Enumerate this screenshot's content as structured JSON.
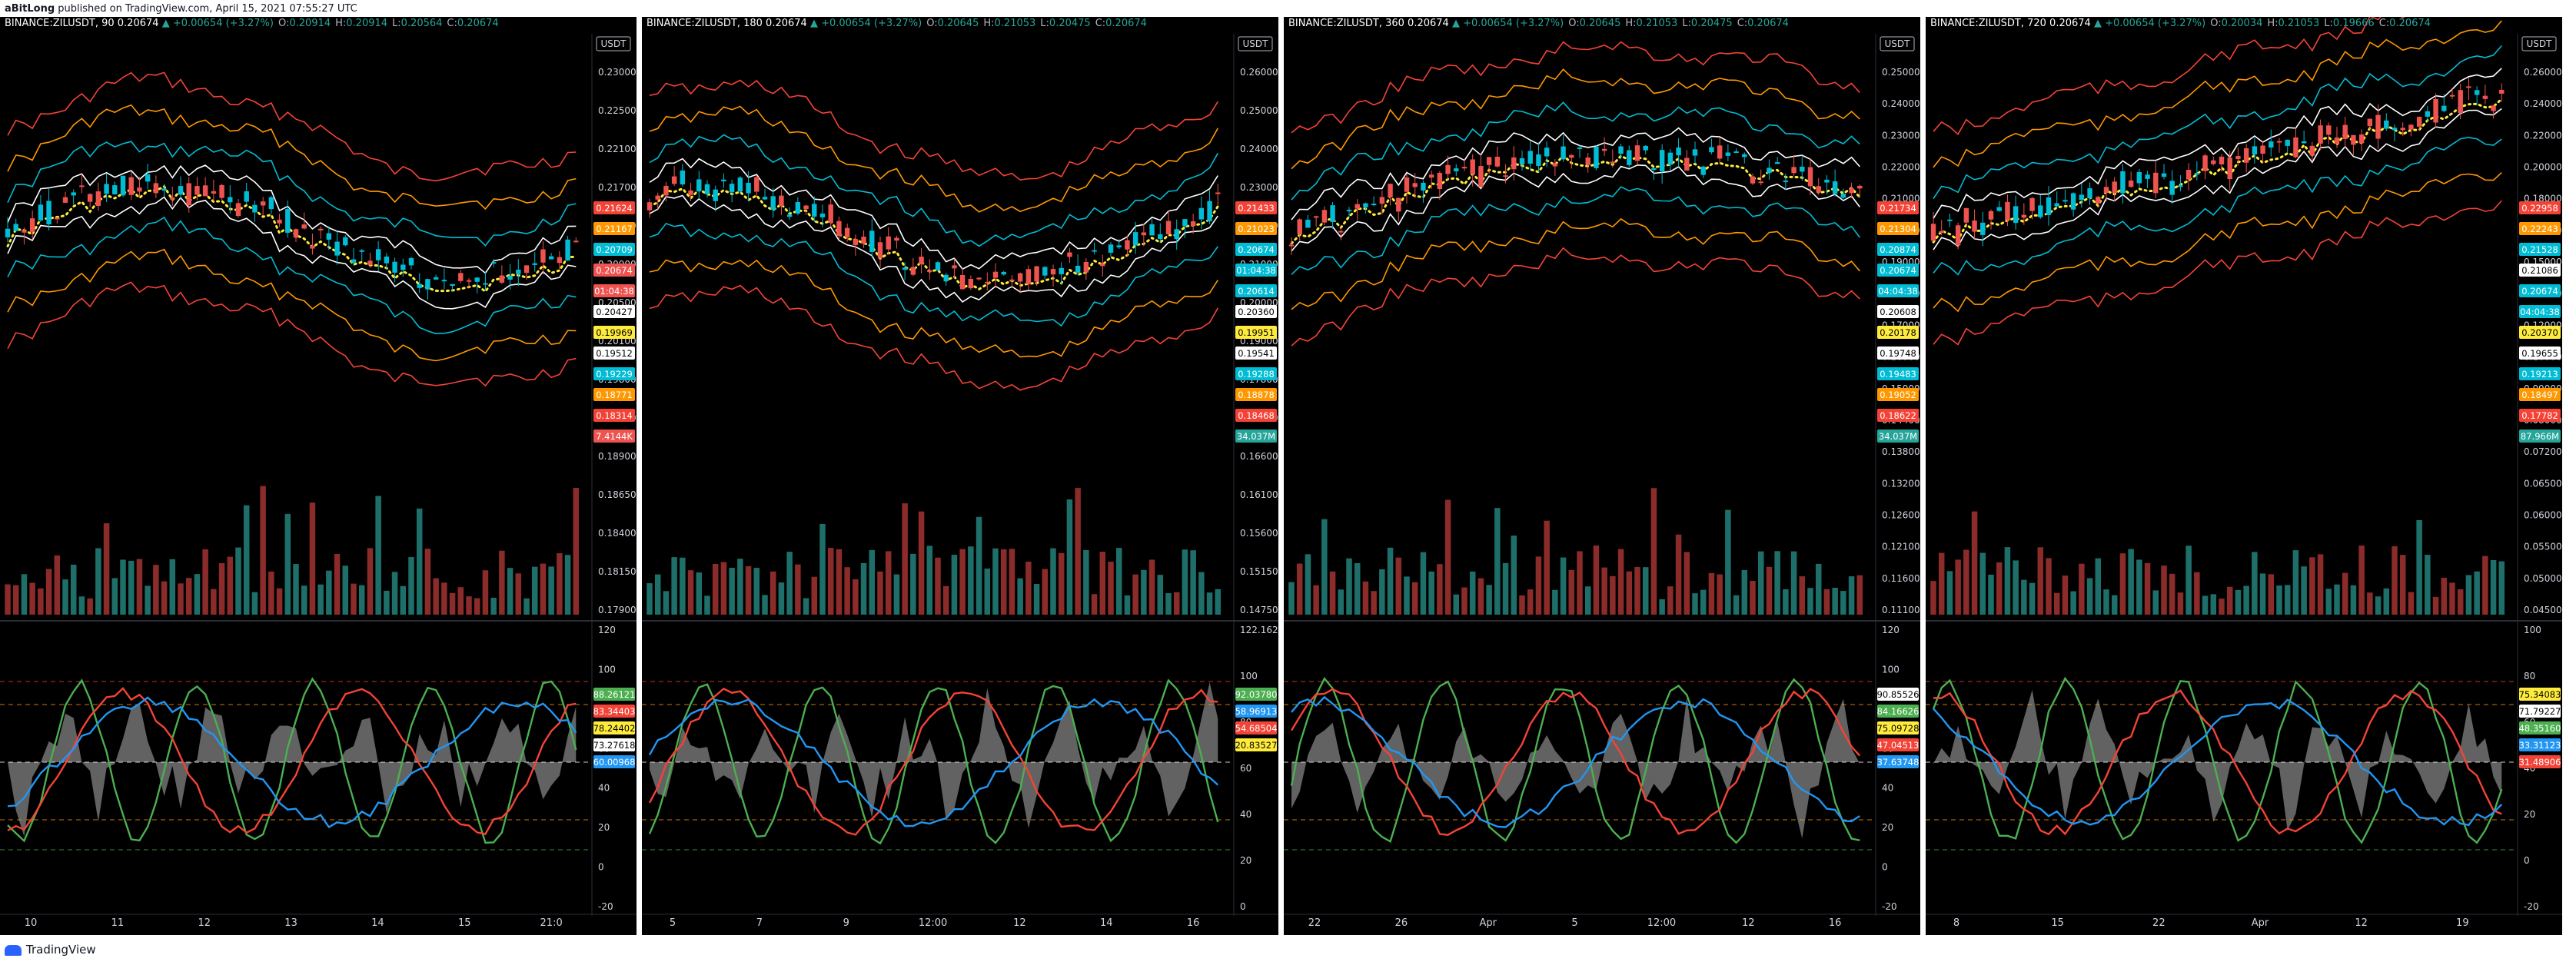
{
  "header": {
    "username": "aBitLong",
    "published_text": "published on TradingView.com, April 15, 2021 07:55:27 UTC"
  },
  "footer": {
    "brand": "TradingView"
  },
  "colors": {
    "up": "#26a69a",
    "down": "#ef5350",
    "cyan": "#00bcd4",
    "orange": "#ff9800",
    "red": "#f44336",
    "yellow": "#ffeb3b",
    "white": "#ffffff",
    "green": "#4caf50",
    "blue": "#2196f3"
  },
  "panels": [
    {
      "symbol": "BINANCE:ZILUSDT, 90",
      "last": "0.20674",
      "change": "+0.00654 (+3.27%)",
      "ohlc": {
        "o": "0.20914",
        "h": "0.20914",
        "l": "0.20564",
        "c": "0.20674"
      },
      "currency": "USDT",
      "price_axis": [
        "0.23000",
        "0.22500",
        "0.22100",
        "0.21700",
        "0.21300",
        "0.20900",
        "0.20500",
        "0.20100",
        "0.19800",
        "0.19500",
        "0.18900",
        "0.18650",
        "0.18400",
        "0.18150",
        "0.17900"
      ],
      "price_tags": [
        {
          "text": "0.21624",
          "color": "#f44336",
          "fg": "#ffffff"
        },
        {
          "text": "0.21167",
          "color": "#ff9800",
          "fg": "#ffffff"
        },
        {
          "text": "0.20709",
          "color": "#00bcd4",
          "fg": "#ffffff"
        },
        {
          "text": "0.20674",
          "color": "#ef5350",
          "fg": "#ffffff"
        },
        {
          "text": "01:04:38",
          "color": "#ef5350",
          "fg": "#ffffff"
        },
        {
          "text": "0.20427",
          "color": "#ffffff",
          "fg": "#000000"
        },
        {
          "text": "0.19969",
          "color": "#ffeb3b",
          "fg": "#000000"
        },
        {
          "text": "0.19512",
          "color": "#ffffff",
          "fg": "#000000"
        },
        {
          "text": "0.19229",
          "color": "#00bcd4",
          "fg": "#ffffff"
        },
        {
          "text": "0.18771",
          "color": "#ff9800",
          "fg": "#ffffff"
        },
        {
          "text": "0.18314",
          "color": "#f44336",
          "fg": "#ffffff"
        },
        {
          "text": "7.4144K",
          "color": "#ef5350",
          "fg": "#ffffff"
        }
      ],
      "osc_axis": [
        "120",
        "100",
        "80",
        "60",
        "40",
        "20",
        "0",
        "-20"
      ],
      "osc_tags": [
        {
          "text": "88.26121",
          "color": "#4caf50",
          "fg": "#ffffff"
        },
        {
          "text": "83.34403",
          "color": "#f44336",
          "fg": "#ffffff"
        },
        {
          "text": "78.24402",
          "color": "#ffeb3b",
          "fg": "#000000"
        },
        {
          "text": "73.27618",
          "color": "#ffffff",
          "fg": "#000000"
        },
        {
          "text": "60.00968",
          "color": "#2196f3",
          "fg": "#ffffff"
        }
      ],
      "time_axis": [
        "10",
        "11",
        "12",
        "13",
        "14",
        "15",
        "21:0"
      ]
    },
    {
      "symbol": "BINANCE:ZILUSDT, 180",
      "last": "0.20674",
      "change": "+0.00654 (+3.27%)",
      "ohlc": {
        "o": "0.20645",
        "h": "0.21053",
        "l": "0.20475",
        "c": "0.20674"
      },
      "currency": "USDT",
      "price_axis": [
        "0.26000",
        "0.25000",
        "0.24000",
        "0.23000",
        "0.22000",
        "0.21000",
        "0.20000",
        "0.19000",
        "0.17800",
        "0.17200",
        "0.16600",
        "0.16100",
        "0.15600",
        "0.15150",
        "0.14750"
      ],
      "price_tags": [
        {
          "text": "0.21433",
          "color": "#f44336",
          "fg": "#ffffff"
        },
        {
          "text": "0.21023",
          "color": "#ff9800",
          "fg": "#ffffff"
        },
        {
          "text": "0.20674",
          "color": "#00bcd4",
          "fg": "#ffffff"
        },
        {
          "text": "01:04:38",
          "color": "#00bcd4",
          "fg": "#ffffff"
        },
        {
          "text": "0.20614",
          "color": "#00bcd4",
          "fg": "#ffffff"
        },
        {
          "text": "0.20360",
          "color": "#ffffff",
          "fg": "#000000"
        },
        {
          "text": "0.19951",
          "color": "#ffeb3b",
          "fg": "#000000"
        },
        {
          "text": "0.19541",
          "color": "#ffffff",
          "fg": "#000000"
        },
        {
          "text": "0.19288",
          "color": "#00bcd4",
          "fg": "#ffffff"
        },
        {
          "text": "0.18878",
          "color": "#ff9800",
          "fg": "#ffffff"
        },
        {
          "text": "0.18468",
          "color": "#f44336",
          "fg": "#ffffff"
        },
        {
          "text": "34.037M",
          "color": "#26a69a",
          "fg": "#ffffff"
        }
      ],
      "osc_axis": [
        "122.16285",
        "100",
        "80",
        "60",
        "40",
        "20",
        "0"
      ],
      "osc_tags": [
        {
          "text": "92.03780",
          "color": "#4caf50",
          "fg": "#ffffff"
        },
        {
          "text": "58.96913",
          "color": "#2196f3",
          "fg": "#ffffff"
        },
        {
          "text": "54.68504",
          "color": "#f44336",
          "fg": "#ffffff"
        },
        {
          "text": "20.83527",
          "color": "#ffeb3b",
          "fg": "#000000"
        }
      ],
      "time_axis": [
        "5",
        "7",
        "9",
        "12:00",
        "12",
        "14",
        "16"
      ]
    },
    {
      "symbol": "BINANCE:ZILUSDT, 360",
      "last": "0.20674",
      "change": "+0.00654 (+3.27%)",
      "ohlc": {
        "o": "0.20645",
        "h": "0.21053",
        "l": "0.20475",
        "c": "0.20674"
      },
      "currency": "USDT",
      "price_axis": [
        "0.25000",
        "0.24000",
        "0.23000",
        "0.22000",
        "0.21000",
        "0.20000",
        "0.19000",
        "0.18000",
        "0.17000",
        "0.16000",
        "0.15000",
        "0.14400",
        "0.13800",
        "0.13200",
        "0.12600",
        "0.12100",
        "0.11600",
        "0.11100"
      ],
      "price_tags": [
        {
          "text": "0.21734",
          "color": "#f44336",
          "fg": "#ffffff"
        },
        {
          "text": "0.21304",
          "color": "#ff9800",
          "fg": "#ffffff"
        },
        {
          "text": "0.20874",
          "color": "#00bcd4",
          "fg": "#ffffff"
        },
        {
          "text": "0.20674",
          "color": "#00bcd4",
          "fg": "#ffffff"
        },
        {
          "text": "04:04:38",
          "color": "#00bcd4",
          "fg": "#ffffff"
        },
        {
          "text": "0.20608",
          "color": "#ffffff",
          "fg": "#000000"
        },
        {
          "text": "0.20178",
          "color": "#ffeb3b",
          "fg": "#000000"
        },
        {
          "text": "0.19748",
          "color": "#ffffff",
          "fg": "#000000"
        },
        {
          "text": "0.19483",
          "color": "#00bcd4",
          "fg": "#ffffff"
        },
        {
          "text": "0.19052",
          "color": "#ff9800",
          "fg": "#ffffff"
        },
        {
          "text": "0.18622",
          "color": "#f44336",
          "fg": "#ffffff"
        },
        {
          "text": "34.037M",
          "color": "#26a69a",
          "fg": "#ffffff"
        }
      ],
      "osc_axis": [
        "120",
        "100",
        "80",
        "60",
        "40",
        "20",
        "0",
        "-20"
      ],
      "osc_tags": [
        {
          "text": "90.85526",
          "color": "#ffffff",
          "fg": "#000000"
        },
        {
          "text": "84.16626",
          "color": "#4caf50",
          "fg": "#ffffff"
        },
        {
          "text": "75.09728",
          "color": "#ffeb3b",
          "fg": "#000000"
        },
        {
          "text": "47.04513",
          "color": "#f44336",
          "fg": "#ffffff"
        },
        {
          "text": "37.63748",
          "color": "#2196f3",
          "fg": "#ffffff"
        }
      ],
      "time_axis": [
        "22",
        "26",
        "Apr",
        "5",
        "12:00",
        "12",
        "16"
      ]
    },
    {
      "symbol": "BINANCE:ZILUSDT, 720",
      "last": "0.20674",
      "change": "+0.00654 (+3.27%)",
      "ohlc": {
        "o": "0.20034",
        "h": "0.21053",
        "l": "0.19666",
        "c": "0.20674"
      },
      "currency": "USDT",
      "price_axis": [
        "0.26000",
        "0.24000",
        "0.22000",
        "0.20000",
        "0.18000",
        "0.16000",
        "0.15000",
        "0.13500",
        "0.12000",
        "0.10000",
        "0.09000",
        "0.08000",
        "0.07200",
        "0.06500",
        "0.06000",
        "0.05500",
        "0.05000",
        "0.04500"
      ],
      "price_tags": [
        {
          "text": "0.22958",
          "color": "#f44336",
          "fg": "#ffffff"
        },
        {
          "text": "0.22243",
          "color": "#ff9800",
          "fg": "#ffffff"
        },
        {
          "text": "0.21528",
          "color": "#00bcd4",
          "fg": "#ffffff"
        },
        {
          "text": "0.21086",
          "color": "#ffffff",
          "fg": "#000000"
        },
        {
          "text": "0.20674",
          "color": "#00bcd4",
          "fg": "#ffffff"
        },
        {
          "text": "04:04:38",
          "color": "#00bcd4",
          "fg": "#ffffff"
        },
        {
          "text": "0.20370",
          "color": "#ffeb3b",
          "fg": "#000000"
        },
        {
          "text": "0.19655",
          "color": "#ffffff",
          "fg": "#000000"
        },
        {
          "text": "0.19213",
          "color": "#00bcd4",
          "fg": "#ffffff"
        },
        {
          "text": "0.18497",
          "color": "#ff9800",
          "fg": "#ffffff"
        },
        {
          "text": "0.17782",
          "color": "#f44336",
          "fg": "#ffffff"
        },
        {
          "text": "87.966M",
          "color": "#26a69a",
          "fg": "#ffffff"
        }
      ],
      "osc_axis": [
        "100",
        "80",
        "60",
        "40",
        "20",
        "0",
        "-20"
      ],
      "osc_tags": [
        {
          "text": "75.34083",
          "color": "#ffeb3b",
          "fg": "#000000"
        },
        {
          "text": "71.79227",
          "color": "#ffffff",
          "fg": "#000000"
        },
        {
          "text": "48.35160",
          "color": "#4caf50",
          "fg": "#ffffff"
        },
        {
          "text": "33.31123",
          "color": "#2196f3",
          "fg": "#ffffff"
        },
        {
          "text": "31.48906",
          "color": "#f44336",
          "fg": "#ffffff"
        }
      ],
      "time_axis": [
        "8",
        "15",
        "22",
        "Apr",
        "12",
        "19"
      ]
    }
  ]
}
